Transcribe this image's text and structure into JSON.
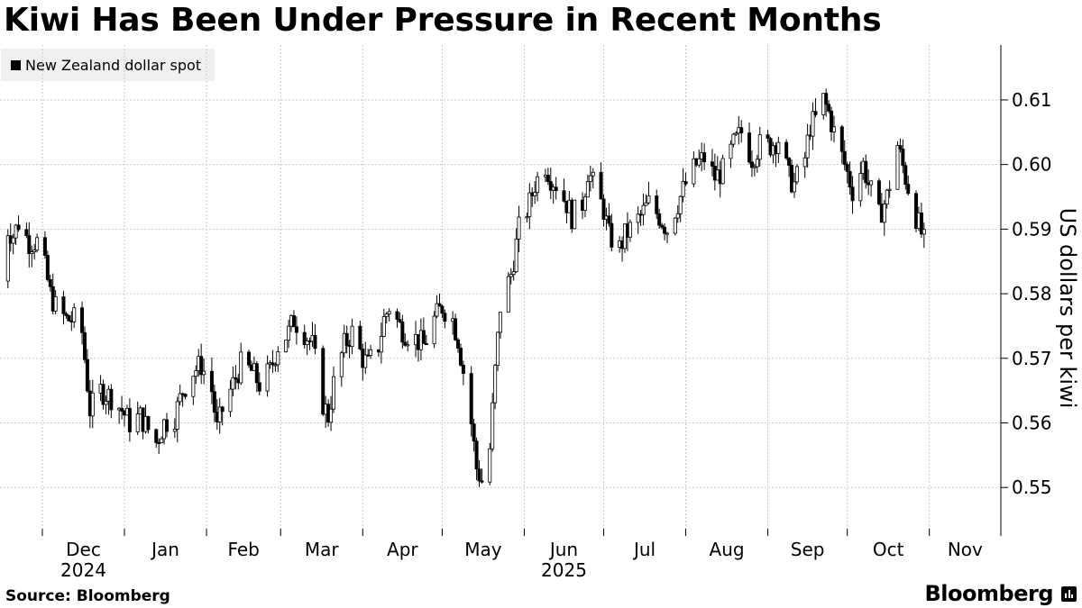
{
  "header": {
    "title": "Kiwi Has Been Under Pressure in Recent Months"
  },
  "footer": {
    "source": "Source: Bloomberg",
    "brand": "Bloomberg"
  },
  "colors": {
    "candle_up_fill": "#ffffff",
    "candle_down_fill": "#000000",
    "candle_stroke": "#000000",
    "grid": "#c8c8c8",
    "legend_bg": "#f0f0f0"
  },
  "chart_data": {
    "type": "candlestick",
    "legend": [
      "New Zealand dollar spot"
    ],
    "legend_placement": "top-left",
    "ylabel": "US dollars per kiwi",
    "y_axis_side": "right",
    "ylim": [
      0.5425,
      0.6185
    ],
    "y_ticks": [
      0.55,
      0.56,
      0.57,
      0.58,
      0.59,
      0.6,
      0.61
    ],
    "y_tick_labels": [
      "0.55",
      "0.56",
      "0.57",
      "0.58",
      "0.59",
      "0.60",
      "0.61"
    ],
    "xlim": [
      "2024-11-15",
      "2025-11-28"
    ],
    "x_ticks": [
      {
        "label": "Dec",
        "year": "2024",
        "date": "2024-12-01"
      },
      {
        "label": "Jan",
        "year": "",
        "date": "2025-01-01"
      },
      {
        "label": "Feb",
        "year": "",
        "date": "2025-02-01"
      },
      {
        "label": "Mar",
        "year": "",
        "date": "2025-03-01"
      },
      {
        "label": "Apr",
        "year": "",
        "date": "2025-04-01"
      },
      {
        "label": "May",
        "year": "",
        "date": "2025-05-01"
      },
      {
        "label": "Jun",
        "year": "2025",
        "date": "2025-06-01"
      },
      {
        "label": "Jul",
        "year": "",
        "date": "2025-07-01"
      },
      {
        "label": "Aug",
        "year": "",
        "date": "2025-08-01"
      },
      {
        "label": "Sep",
        "year": "",
        "date": "2025-09-01"
      },
      {
        "label": "Oct",
        "year": "",
        "date": "2025-10-01"
      },
      {
        "label": "Nov",
        "year": "",
        "date": "2025-11-01"
      }
    ],
    "grid": true,
    "anchors": [
      [
        "2024-11-15",
        0.582
      ],
      [
        "2024-11-18",
        0.59
      ],
      [
        "2024-11-20",
        0.589
      ],
      [
        "2024-11-22",
        0.591
      ],
      [
        "2024-11-26",
        0.588
      ],
      [
        "2024-11-29",
        0.588
      ],
      [
        "2024-12-02",
        0.584
      ],
      [
        "2024-12-04",
        0.58
      ],
      [
        "2024-12-06",
        0.578
      ],
      [
        "2024-12-10",
        0.576
      ],
      [
        "2024-12-13",
        0.576
      ],
      [
        "2024-12-16",
        0.574
      ],
      [
        "2024-12-18",
        0.566
      ],
      [
        "2024-12-19",
        0.562
      ],
      [
        "2024-12-23",
        0.565
      ],
      [
        "2024-12-27",
        0.564
      ],
      [
        "2024-12-31",
        0.562
      ],
      [
        "2025-01-03",
        0.56
      ],
      [
        "2025-01-07",
        0.561
      ],
      [
        "2025-01-10",
        0.559
      ],
      [
        "2025-01-13",
        0.557
      ],
      [
        "2025-01-16",
        0.56
      ],
      [
        "2025-01-20",
        0.561
      ],
      [
        "2025-01-23",
        0.565
      ],
      [
        "2025-01-27",
        0.568
      ],
      [
        "2025-01-30",
        0.569
      ],
      [
        "2025-02-03",
        0.565
      ],
      [
        "2025-02-05",
        0.559
      ],
      [
        "2025-02-07",
        0.562
      ],
      [
        "2025-02-11",
        0.566
      ],
      [
        "2025-02-14",
        0.569
      ],
      [
        "2025-02-18",
        0.568
      ],
      [
        "2025-02-21",
        0.566
      ],
      [
        "2025-02-25",
        0.568
      ],
      [
        "2025-02-28",
        0.572
      ],
      [
        "2025-03-04",
        0.574
      ],
      [
        "2025-03-06",
        0.576
      ],
      [
        "2025-03-10",
        0.574
      ],
      [
        "2025-03-13",
        0.572
      ],
      [
        "2025-03-17",
        0.563
      ],
      [
        "2025-03-19",
        0.561
      ],
      [
        "2025-03-21",
        0.566
      ],
      [
        "2025-03-25",
        0.572
      ],
      [
        "2025-03-28",
        0.574
      ],
      [
        "2025-04-01",
        0.57
      ],
      [
        "2025-04-03",
        0.569
      ],
      [
        "2025-04-07",
        0.572
      ],
      [
        "2025-04-09",
        0.576
      ],
      [
        "2025-04-11",
        0.578
      ],
      [
        "2025-04-15",
        0.575
      ],
      [
        "2025-04-17",
        0.574
      ],
      [
        "2025-04-21",
        0.573
      ],
      [
        "2025-04-24",
        0.572
      ],
      [
        "2025-04-28",
        0.576
      ],
      [
        "2025-05-01",
        0.578
      ],
      [
        "2025-05-05",
        0.576
      ],
      [
        "2025-05-07",
        0.573
      ],
      [
        "2025-05-09",
        0.568
      ],
      [
        "2025-05-12",
        0.56
      ],
      [
        "2025-05-14",
        0.553
      ],
      [
        "2025-05-16",
        0.551
      ],
      [
        "2025-05-19",
        0.556
      ],
      [
        "2025-05-21",
        0.568
      ],
      [
        "2025-05-23",
        0.578
      ],
      [
        "2025-05-27",
        0.583
      ],
      [
        "2025-05-30",
        0.59
      ],
      [
        "2025-06-03",
        0.594
      ],
      [
        "2025-06-05",
        0.597
      ],
      [
        "2025-06-09",
        0.6
      ],
      [
        "2025-06-11",
        0.598
      ],
      [
        "2025-06-13",
        0.597
      ],
      [
        "2025-06-17",
        0.594
      ],
      [
        "2025-06-19",
        0.592
      ],
      [
        "2025-06-23",
        0.594
      ],
      [
        "2025-06-25",
        0.599
      ],
      [
        "2025-06-27",
        0.597
      ],
      [
        "2025-07-01",
        0.593
      ],
      [
        "2025-07-03",
        0.589
      ],
      [
        "2025-07-07",
        0.587
      ],
      [
        "2025-07-09",
        0.589
      ],
      [
        "2025-07-11",
        0.59
      ],
      [
        "2025-07-15",
        0.592
      ],
      [
        "2025-07-18",
        0.594
      ],
      [
        "2025-07-22",
        0.592
      ],
      [
        "2025-07-25",
        0.59
      ],
      [
        "2025-07-29",
        0.594
      ],
      [
        "2025-08-01",
        0.597
      ],
      [
        "2025-08-05",
        0.6
      ],
      [
        "2025-08-08",
        0.601
      ],
      [
        "2025-08-12",
        0.598
      ],
      [
        "2025-08-15",
        0.599
      ],
      [
        "2025-08-19",
        0.603
      ],
      [
        "2025-08-22",
        0.605
      ],
      [
        "2025-08-26",
        0.601
      ],
      [
        "2025-08-29",
        0.603
      ],
      [
        "2025-09-02",
        0.603
      ],
      [
        "2025-09-05",
        0.604
      ],
      [
        "2025-09-09",
        0.598
      ],
      [
        "2025-09-11",
        0.597
      ],
      [
        "2025-09-15",
        0.601
      ],
      [
        "2025-09-17",
        0.606
      ],
      [
        "2025-09-19",
        0.607
      ],
      [
        "2025-09-22",
        0.61
      ],
      [
        "2025-09-24",
        0.608
      ],
      [
        "2025-09-26",
        0.605
      ],
      [
        "2025-09-30",
        0.6
      ],
      [
        "2025-10-03",
        0.596
      ],
      [
        "2025-10-07",
        0.6
      ],
      [
        "2025-10-09",
        0.597
      ],
      [
        "2025-10-13",
        0.592
      ],
      [
        "2025-10-16",
        0.595
      ],
      [
        "2025-10-20",
        0.603
      ],
      [
        "2025-10-23",
        0.598
      ],
      [
        "2025-10-27",
        0.592
      ],
      [
        "2025-10-30",
        0.588
      ]
    ]
  }
}
